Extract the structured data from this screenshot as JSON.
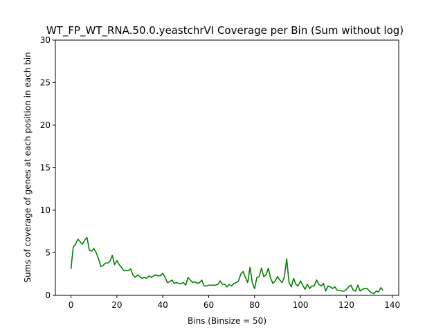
{
  "chart_data": {
    "type": "line",
    "title": "WT_FP_WT_RNA.50.0.yeastchrVI Coverage per Bin (Sum without log)",
    "xlabel": "Bins (Binsize = 50)",
    "ylabel": "Sums of coverage of genes at each position in each bin",
    "xlim": [
      -6.8,
      142.8
    ],
    "ylim": [
      0,
      30
    ],
    "xticks": [
      0,
      20,
      40,
      60,
      80,
      100,
      120,
      140
    ],
    "yticks": [
      0,
      5,
      10,
      15,
      20,
      25,
      30
    ],
    "grid": false,
    "series": [
      {
        "color": "#008000",
        "x": [
          0,
          1,
          2,
          3,
          4,
          5,
          6,
          7,
          8,
          9,
          10,
          11,
          12,
          13,
          14,
          15,
          16,
          17,
          18,
          19,
          20,
          21,
          22,
          23,
          24,
          25,
          26,
          27,
          28,
          29,
          30,
          31,
          32,
          33,
          34,
          35,
          36,
          37,
          38,
          39,
          40,
          41,
          42,
          43,
          44,
          45,
          46,
          47,
          48,
          49,
          50,
          51,
          52,
          53,
          54,
          55,
          56,
          57,
          58,
          59,
          60,
          61,
          62,
          63,
          64,
          65,
          66,
          67,
          68,
          69,
          70,
          71,
          72,
          73,
          74,
          75,
          76,
          77,
          78,
          79,
          80,
          81,
          82,
          83,
          84,
          85,
          86,
          87,
          88,
          89,
          90,
          91,
          92,
          93,
          94,
          95,
          96,
          97,
          98,
          99,
          100,
          101,
          102,
          103,
          104,
          105,
          106,
          107,
          108,
          109,
          110,
          111,
          112,
          113,
          114,
          115,
          116,
          117,
          118,
          119,
          120,
          121,
          122,
          123,
          124,
          125,
          126,
          127,
          128,
          129,
          130,
          131,
          132,
          133,
          134,
          135,
          136
        ],
        "values": [
          3.1,
          5.7,
          6.0,
          6.6,
          6.3,
          6.0,
          6.5,
          6.8,
          5.3,
          5.2,
          5.5,
          5.0,
          4.3,
          3.4,
          3.5,
          3.8,
          3.8,
          4.0,
          4.7,
          3.6,
          4.1,
          3.6,
          3.3,
          2.9,
          2.9,
          2.9,
          3.1,
          2.4,
          2.1,
          2.4,
          2.2,
          2.0,
          2.1,
          2.0,
          2.3,
          2.1,
          2.3,
          2.4,
          2.3,
          2.3,
          2.6,
          2.1,
          1.5,
          1.6,
          1.8,
          1.4,
          1.5,
          1.4,
          1.4,
          1.5,
          1.2,
          2.1,
          1.8,
          1.5,
          1.6,
          1.4,
          1.5,
          1.8,
          1.1,
          1.1,
          1.2,
          1.2,
          1.2,
          1.2,
          1.3,
          1.7,
          1.3,
          1.3,
          1.0,
          1.3,
          1.1,
          1.4,
          1.5,
          1.7,
          2.5,
          2.8,
          2.1,
          1.5,
          3.3,
          1.5,
          0.8,
          2.1,
          2.2,
          3.2,
          2.2,
          2.4,
          3.2,
          2.0,
          1.4,
          1.7,
          2.2,
          1.8,
          1.5,
          2.2,
          4.3,
          1.5,
          1.0,
          2.0,
          1.3,
          1.1,
          1.7,
          1.2,
          0.7,
          1.3,
          0.8,
          1.1,
          1.1,
          1.8,
          1.3,
          1.1,
          1.4,
          0.5,
          1.1,
          1.0,
          0.8,
          1.0,
          0.6,
          0.6,
          0.5,
          0.5,
          0.7,
          1.0,
          1.2,
          0.6,
          0.5,
          1.2,
          0.5,
          0.7,
          0.8,
          0.8,
          0.5,
          0.3,
          0.2,
          0.5,
          0.4,
          0.9,
          0.6
        ]
      }
    ]
  }
}
